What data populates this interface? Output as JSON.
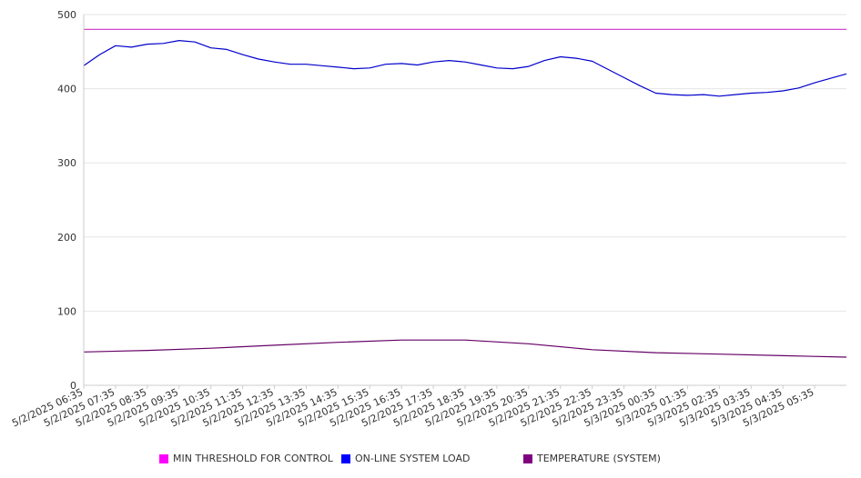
{
  "chart_data": {
    "type": "line",
    "title": "",
    "xlabel": "",
    "ylabel": "",
    "ylim": [
      0,
      500
    ],
    "yticks": [
      0,
      100,
      200,
      300,
      400,
      500
    ],
    "grid": "horizontal",
    "legend_position": "bottom",
    "x_tick_labels": [
      "5/2/2025 06:35",
      "5/2/2025 07:35",
      "5/2/2025 08:35",
      "5/2/2025 09:35",
      "5/2/2025 10:35",
      "5/2/2025 11:35",
      "5/2/2025 12:35",
      "5/2/2025 13:35",
      "5/2/2025 14:35",
      "5/2/2025 15:35",
      "5/2/2025 16:35",
      "5/2/2025 17:35",
      "5/2/2025 18:35",
      "5/2/2025 19:35",
      "5/2/2025 20:35",
      "5/2/2025 21:35",
      "5/2/2025 22:35",
      "5/2/2025 23:35",
      "5/3/2025 00:35",
      "5/3/2025 01:35",
      "5/3/2025 02:35",
      "5/3/2025 03:35",
      "5/3/2025 04:35",
      "5/3/2025 05:35"
    ],
    "x_range": [
      "5/2/2025 06:35",
      "5/3/2025 06:35"
    ],
    "series": [
      {
        "name": "MIN THRESHOLD FOR CONTROL",
        "color": "#cc33cc",
        "legend_color": "#ff00ff",
        "x": [
          "5/2/2025 06:35",
          "5/3/2025 06:35"
        ],
        "values": [
          480,
          480
        ]
      },
      {
        "name": "ON-LINE SYSTEM LOAD",
        "color": "#0000cc",
        "legend_color": "#0000ff",
        "x": [
          "5/2/2025 06:35",
          "5/2/2025 07:05",
          "5/2/2025 07:35",
          "5/2/2025 08:05",
          "5/2/2025 08:35",
          "5/2/2025 09:05",
          "5/2/2025 09:35",
          "5/2/2025 10:05",
          "5/2/2025 10:35",
          "5/2/2025 11:05",
          "5/2/2025 11:35",
          "5/2/2025 12:05",
          "5/2/2025 12:35",
          "5/2/2025 13:05",
          "5/2/2025 13:35",
          "5/2/2025 14:05",
          "5/2/2025 14:35",
          "5/2/2025 15:05",
          "5/2/2025 15:35",
          "5/2/2025 16:05",
          "5/2/2025 16:35",
          "5/2/2025 17:05",
          "5/2/2025 17:35",
          "5/2/2025 18:05",
          "5/2/2025 18:35",
          "5/2/2025 19:05",
          "5/2/2025 19:35",
          "5/2/2025 20:05",
          "5/2/2025 20:35",
          "5/2/2025 21:05",
          "5/2/2025 21:35",
          "5/2/2025 22:05",
          "5/2/2025 22:35",
          "5/2/2025 23:05",
          "5/2/2025 23:35",
          "5/3/2025 00:05",
          "5/3/2025 00:35",
          "5/3/2025 01:05",
          "5/3/2025 01:35",
          "5/3/2025 02:05",
          "5/3/2025 02:35",
          "5/3/2025 03:05",
          "5/3/2025 03:35",
          "5/3/2025 04:05",
          "5/3/2025 04:35",
          "5/3/2025 05:05",
          "5/3/2025 05:35",
          "5/3/2025 06:05",
          "5/3/2025 06:35"
        ],
        "values": [
          431,
          446,
          458,
          456,
          460,
          461,
          465,
          463,
          455,
          453,
          446,
          440,
          436,
          433,
          433,
          431,
          429,
          427,
          428,
          433,
          434,
          432,
          436,
          438,
          436,
          432,
          428,
          427,
          430,
          438,
          443,
          441,
          437,
          426,
          415,
          404,
          394,
          392,
          391,
          392,
          390,
          392,
          394,
          395,
          397,
          401,
          408,
          414,
          420
        ]
      },
      {
        "name": "TEMPERATURE (SYSTEM)",
        "color": "#660066",
        "legend_color": "#800080",
        "x": [
          "5/2/2025 06:35",
          "5/2/2025 08:35",
          "5/2/2025 10:35",
          "5/2/2025 12:35",
          "5/2/2025 14:35",
          "5/2/2025 16:35",
          "5/2/2025 18:35",
          "5/2/2025 20:35",
          "5/2/2025 22:35",
          "5/3/2025 00:35",
          "5/3/2025 02:35",
          "5/3/2025 04:35",
          "5/3/2025 06:35"
        ],
        "values": [
          45,
          47,
          50,
          54,
          58,
          61,
          61,
          56,
          48,
          44,
          42,
          40,
          38
        ]
      }
    ]
  }
}
